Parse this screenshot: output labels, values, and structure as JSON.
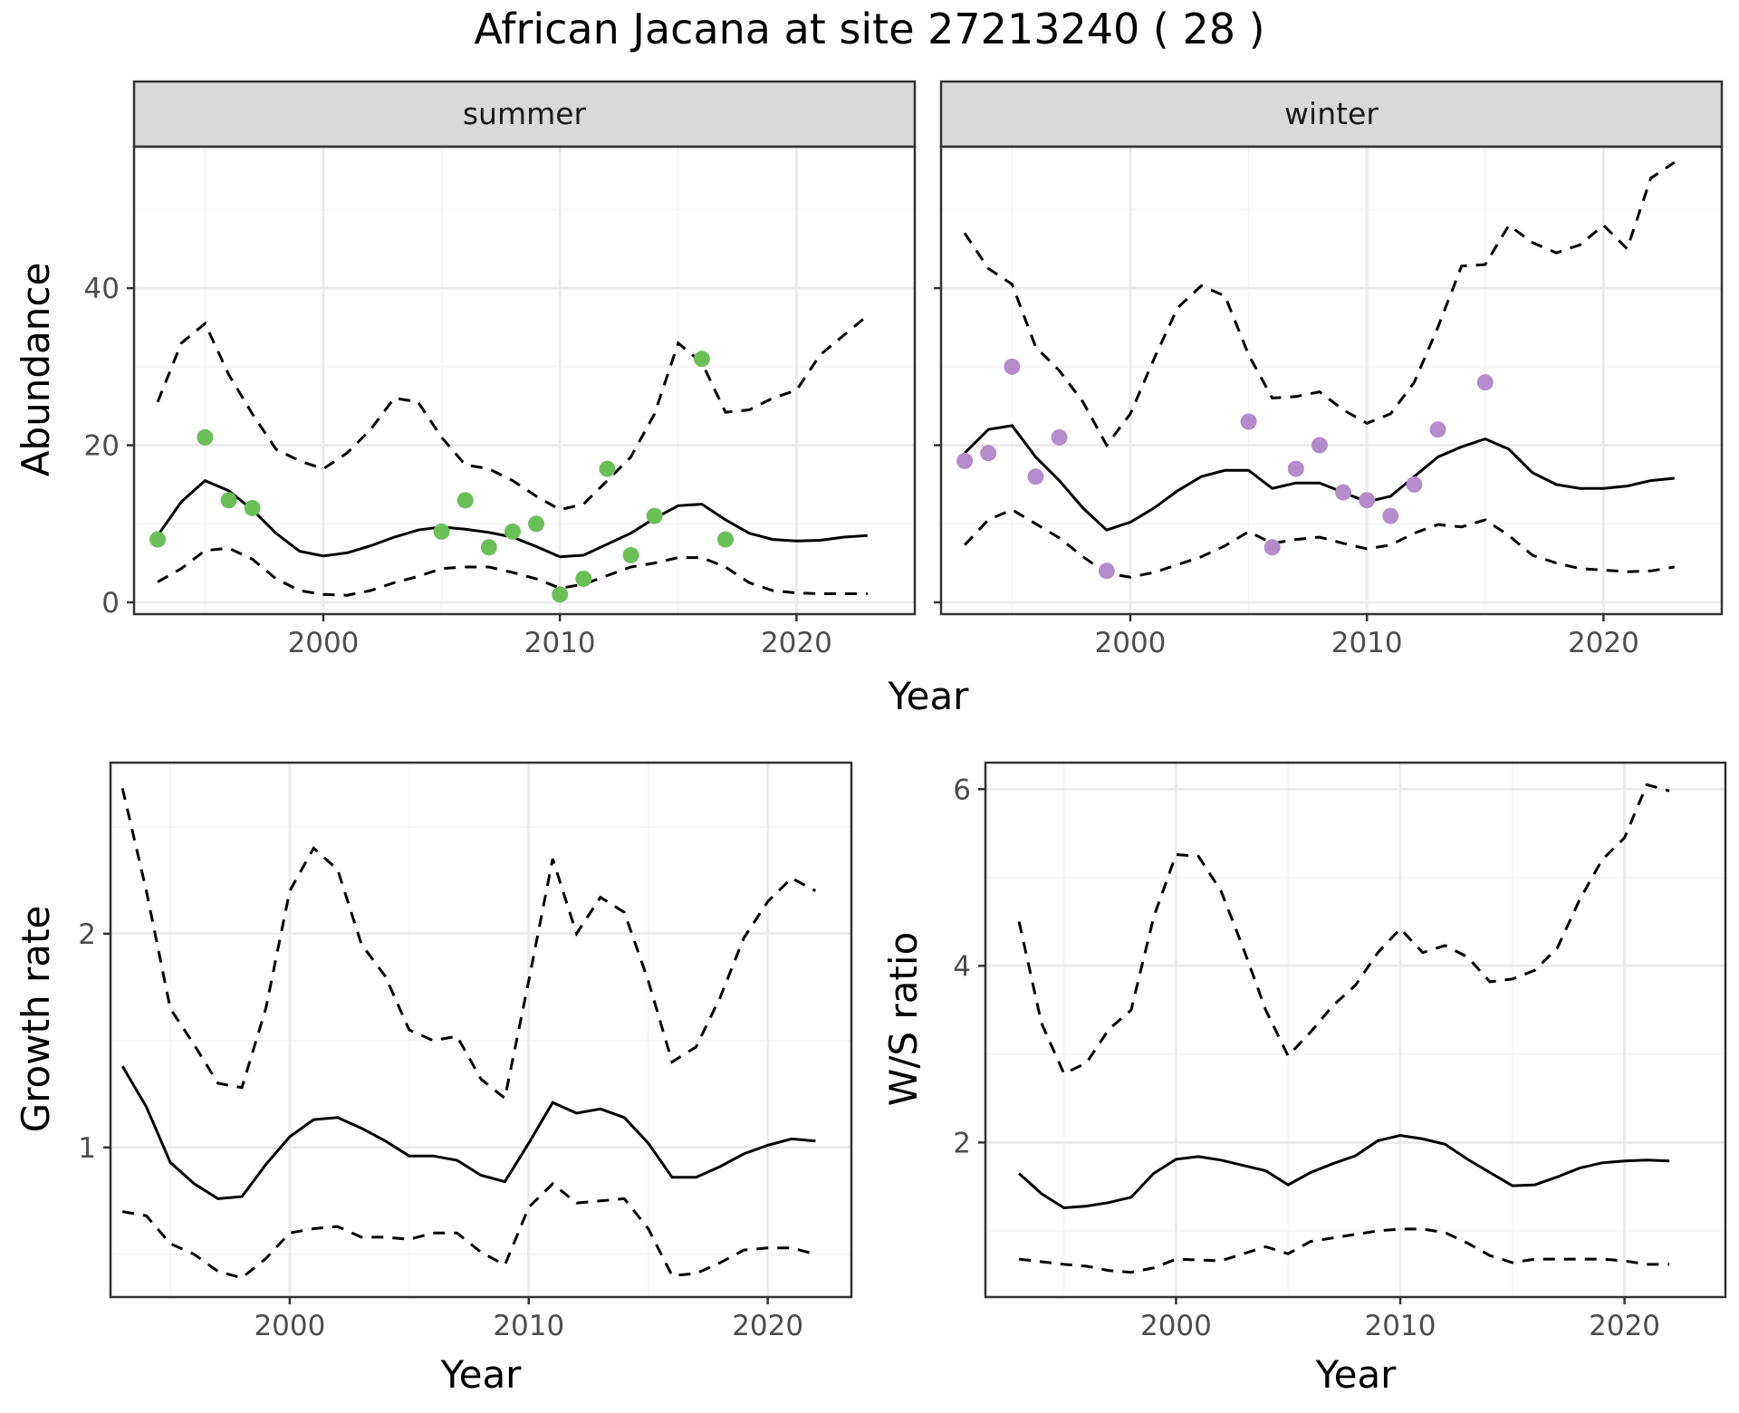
{
  "title": "African Jacana at site 27213240 ( 28 )",
  "colors": {
    "summer_points": "#6BBF59",
    "winter_points": "#B48CCB",
    "line": "#000000",
    "strip_fill": "#D9D9D9",
    "grid_major": "#EBEBEB",
    "grid_minor": "#F5F5F5",
    "panel_border": "#333333"
  },
  "chart_data": [
    {
      "type": "line",
      "facet": "summer",
      "xlabel": "Year",
      "ylabel": "Abundance",
      "xlim": [
        1992,
        2025
      ],
      "ylim": [
        -1.5,
        58
      ],
      "x_ticks": [
        2000,
        2010,
        2020
      ],
      "y_ticks": [
        0,
        20,
        40
      ],
      "grid": true,
      "line_x": [
        1993,
        1994,
        1995,
        1996,
        1997,
        1998,
        1999,
        2000,
        2001,
        2002,
        2003,
        2004,
        2005,
        2006,
        2007,
        2008,
        2009,
        2010,
        2011,
        2012,
        2013,
        2014,
        2015,
        2016,
        2017,
        2018,
        2019,
        2020,
        2021,
        2022,
        2023
      ],
      "series": [
        {
          "name": "",
          "style": "solid",
          "values": [
            8.5,
            12.8,
            15.5,
            14.2,
            11.8,
            8.8,
            6.5,
            5.9,
            6.3,
            7.2,
            8.3,
            9.2,
            9.6,
            9.3,
            8.9,
            8.3,
            7.1,
            5.8,
            6.0,
            7.4,
            8.8,
            10.7,
            12.3,
            12.5,
            10.5,
            8.8,
            8.0,
            7.8,
            7.9,
            8.3,
            8.5
          ]
        },
        {
          "name": "",
          "style": "dashed",
          "values": [
            25.5,
            33,
            35.5,
            29,
            24,
            19.5,
            18,
            17,
            19,
            22,
            26,
            25.5,
            21,
            17.5,
            17,
            15.5,
            13.5,
            11.8,
            12.5,
            15.5,
            18.5,
            24,
            33,
            30.5,
            24.2,
            24.5,
            26,
            27,
            31.5,
            34,
            36.5
          ]
        },
        {
          "name": "",
          "style": "dashed",
          "values": [
            2.6,
            4.3,
            6.6,
            6.9,
            5.5,
            3.0,
            1.5,
            1.0,
            0.9,
            1.5,
            2.5,
            3.3,
            4.3,
            4.5,
            4.5,
            3.8,
            3.0,
            1.8,
            2.3,
            3.4,
            4.5,
            5.0,
            5.7,
            5.7,
            4.5,
            2.5,
            1.5,
            1.2,
            1.1,
            1.1,
            1.1
          ]
        }
      ],
      "points": {
        "x": [
          1993,
          1995,
          1996,
          1997,
          2005,
          2006,
          2007,
          2008,
          2009,
          2010,
          2011,
          2012,
          2013,
          2014,
          2016,
          2017
        ],
        "y": [
          8,
          21,
          13,
          12,
          9,
          13,
          7,
          9,
          10,
          1,
          3,
          17,
          6,
          11,
          31,
          8
        ]
      }
    },
    {
      "type": "line",
      "facet": "winter",
      "xlabel": "Year",
      "ylabel": "Abundance",
      "xlim": [
        1992,
        2025
      ],
      "ylim": [
        -1.5,
        58
      ],
      "x_ticks": [
        2000,
        2010,
        2020
      ],
      "y_ticks": [
        0,
        20,
        40
      ],
      "grid": true,
      "line_x": [
        1993,
        1994,
        1995,
        1996,
        1997,
        1998,
        1999,
        2000,
        2001,
        2002,
        2003,
        2004,
        2005,
        2006,
        2007,
        2008,
        2009,
        2010,
        2011,
        2012,
        2013,
        2014,
        2015,
        2016,
        2017,
        2018,
        2019,
        2020,
        2021,
        2022,
        2023
      ],
      "series": [
        {
          "name": "",
          "style": "solid",
          "values": [
            19,
            22,
            22.5,
            18.5,
            15.5,
            12,
            9.2,
            10.2,
            12,
            14.2,
            16,
            16.8,
            16.8,
            14.5,
            15.2,
            15.2,
            14,
            12.8,
            13.5,
            16,
            18.5,
            19.8,
            20.8,
            19.5,
            16.5,
            15,
            14.5,
            14.5,
            14.8,
            15.5,
            15.8
          ]
        },
        {
          "name": "",
          "style": "dashed",
          "values": [
            47,
            42.5,
            40.5,
            32.5,
            29.5,
            25.5,
            20,
            24,
            31,
            37.5,
            40.3,
            39,
            31.5,
            26,
            26.2,
            26.8,
            24.5,
            22.8,
            24,
            28,
            35,
            42.8,
            43,
            48,
            45.8,
            44.5,
            45.5,
            48,
            45,
            54,
            56
          ]
        },
        {
          "name": "",
          "style": "dashed",
          "values": [
            7.3,
            10.5,
            11.8,
            10,
            8.2,
            5.8,
            3.7,
            3.2,
            3.8,
            4.8,
            5.8,
            7.2,
            9.0,
            7.5,
            8.0,
            8.3,
            7.5,
            6.8,
            7.3,
            8.8,
            9.9,
            9.6,
            10.5,
            8.5,
            6.0,
            5.0,
            4.3,
            4.1,
            3.9,
            4.0,
            4.5
          ]
        }
      ],
      "points": {
        "x": [
          1993,
          1994,
          1995,
          1996,
          1997,
          1999,
          2005,
          2006,
          2007,
          2008,
          2009,
          2010,
          2011,
          2012,
          2013,
          2015
        ],
        "y": [
          18,
          19,
          30,
          16,
          21,
          4,
          23,
          7,
          17,
          20,
          14,
          13,
          11,
          15,
          22,
          28
        ]
      }
    },
    {
      "type": "line",
      "xlabel": "Year",
      "ylabel": "Growth rate",
      "xlim": [
        1992.5,
        2023.5
      ],
      "ylim": [
        0.3,
        2.8
      ],
      "x_ticks": [
        2000,
        2010,
        2020
      ],
      "y_ticks": [
        1,
        2
      ],
      "grid": true,
      "line_x": [
        1993,
        1994,
        1995,
        1996,
        1997,
        1998,
        1999,
        2000,
        2001,
        2002,
        2003,
        2004,
        2005,
        2006,
        2007,
        2008,
        2009,
        2010,
        2011,
        2012,
        2013,
        2014,
        2015,
        2016,
        2017,
        2018,
        2019,
        2020,
        2021,
        2022
      ],
      "series": [
        {
          "name": "",
          "style": "solid",
          "values": [
            1.38,
            1.19,
            0.93,
            0.83,
            0.76,
            0.77,
            0.92,
            1.05,
            1.13,
            1.14,
            1.09,
            1.03,
            0.96,
            0.96,
            0.94,
            0.87,
            0.84,
            1.02,
            1.21,
            1.16,
            1.18,
            1.14,
            1.02,
            0.86,
            0.86,
            0.91,
            0.97,
            1.01,
            1.04,
            1.03
          ]
        },
        {
          "name": "",
          "style": "dashed",
          "values": [
            2.68,
            2.2,
            1.65,
            1.48,
            1.3,
            1.28,
            1.65,
            2.2,
            2.4,
            2.3,
            1.95,
            1.8,
            1.55,
            1.5,
            1.52,
            1.32,
            1.23,
            1.78,
            2.35,
            2.0,
            2.17,
            2.1,
            1.78,
            1.4,
            1.47,
            1.7,
            1.98,
            2.15,
            2.26,
            2.2
          ]
        },
        {
          "name": "",
          "style": "dashed",
          "values": [
            0.7,
            0.68,
            0.55,
            0.5,
            0.42,
            0.39,
            0.48,
            0.6,
            0.62,
            0.63,
            0.58,
            0.58,
            0.57,
            0.6,
            0.6,
            0.51,
            0.45,
            0.72,
            0.83,
            0.74,
            0.75,
            0.76,
            0.62,
            0.4,
            0.41,
            0.46,
            0.52,
            0.53,
            0.53,
            0.5
          ]
        }
      ]
    },
    {
      "type": "line",
      "xlabel": "Year",
      "ylabel": "W/S ratio",
      "xlim": [
        1991.5,
        2024.5
      ],
      "ylim": [
        0.25,
        6.3
      ],
      "x_ticks": [
        2000,
        2010,
        2020
      ],
      "y_ticks": [
        2,
        4,
        6
      ],
      "grid": true,
      "line_x": [
        1993,
        1994,
        1995,
        1996,
        1997,
        1998,
        1999,
        2000,
        2001,
        2002,
        2003,
        2004,
        2005,
        2006,
        2007,
        2008,
        2009,
        2010,
        2011,
        2012,
        2013,
        2014,
        2015,
        2016,
        2017,
        2018,
        2019,
        2020,
        2021,
        2022
      ],
      "series": [
        {
          "name": "",
          "style": "solid",
          "values": [
            1.65,
            1.42,
            1.26,
            1.28,
            1.32,
            1.38,
            1.65,
            1.81,
            1.84,
            1.8,
            1.74,
            1.68,
            1.52,
            1.66,
            1.76,
            1.85,
            2.02,
            2.08,
            2.04,
            1.98,
            1.81,
            1.66,
            1.51,
            1.52,
            1.61,
            1.71,
            1.77,
            1.79,
            1.8,
            1.79
          ]
        },
        {
          "name": "",
          "style": "dashed",
          "values": [
            4.5,
            3.35,
            2.78,
            2.9,
            3.28,
            3.5,
            4.55,
            5.26,
            5.24,
            4.85,
            4.2,
            3.5,
            2.98,
            3.25,
            3.55,
            3.78,
            4.15,
            4.42,
            4.15,
            4.23,
            4.1,
            3.82,
            3.85,
            3.95,
            4.2,
            4.75,
            5.2,
            5.45,
            6.05,
            5.98
          ]
        },
        {
          "name": "",
          "style": "dashed",
          "values": [
            0.68,
            0.65,
            0.62,
            0.6,
            0.55,
            0.53,
            0.58,
            0.68,
            0.67,
            0.66,
            0.74,
            0.82,
            0.74,
            0.88,
            0.92,
            0.96,
            1.0,
            1.02,
            1.02,
            0.98,
            0.86,
            0.72,
            0.64,
            0.68,
            0.68,
            0.68,
            0.68,
            0.66,
            0.62,
            0.62
          ]
        }
      ]
    }
  ]
}
